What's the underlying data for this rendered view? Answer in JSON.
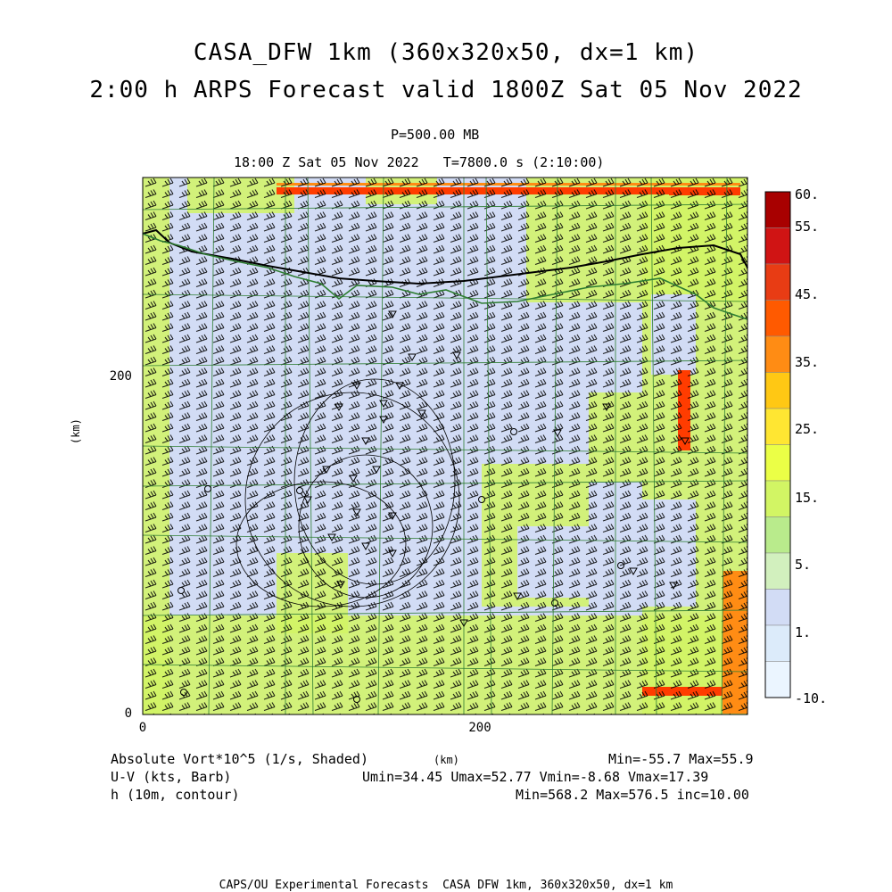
{
  "header": {
    "title_line1": "CASA_DFW 1km (360x320x50, dx=1 km)",
    "title_line2": "2:00 h ARPS Forecast valid 1800Z Sat 05 Nov 2022",
    "level": "P=500.00 MB",
    "time_info": "18:00 Z Sat 05 Nov 2022   T=7800.0 s (2:10:00)"
  },
  "axes": {
    "x_unit": "(km)",
    "y_unit": "(km)",
    "x_ticks": [
      "0",
      "200"
    ],
    "y_ticks": [
      "0",
      "200"
    ]
  },
  "colorbar": {
    "labels": [
      "60.",
      "55.",
      "45.",
      "35.",
      "25.",
      "15.",
      "5.",
      "1.",
      "-10."
    ],
    "colors": [
      "#a80000",
      "#d01414",
      "#e83c14",
      "#ff5a00",
      "#ff8c14",
      "#ffc814",
      "#ffe632",
      "#ebff46",
      "#d2f564",
      "#b9eb8c",
      "#d2f0be",
      "#d2dcf5",
      "#dcebfa",
      "#ebf5ff"
    ]
  },
  "legend": {
    "field1": "Absolute Vort*10^5 (1/s, Shaded)",
    "field1_stats": "Min=-55.7 Max=55.9",
    "field2": "U-V (kts, Barb)",
    "field2_stats": "Umin=34.45 Umax=52.77 Vmin=-8.68 Vmax=17.39",
    "field3": "h (10m, contour)",
    "field3_stats": "Min=568.2 Max=576.5 inc=10.00",
    "unit_center": "(km)"
  },
  "footer": "CAPS/OU Experimental Forecasts  CASA DFW 1km, 360x320x50, dx=1 km",
  "map_colors": {
    "low": "#d2dcf5",
    "mid": "#d2f564",
    "high": "#ebff46",
    "border_red": "#ff3c00",
    "border_orange": "#ff8c14",
    "county_lines": "#2e7d32",
    "river": "#000000"
  }
}
